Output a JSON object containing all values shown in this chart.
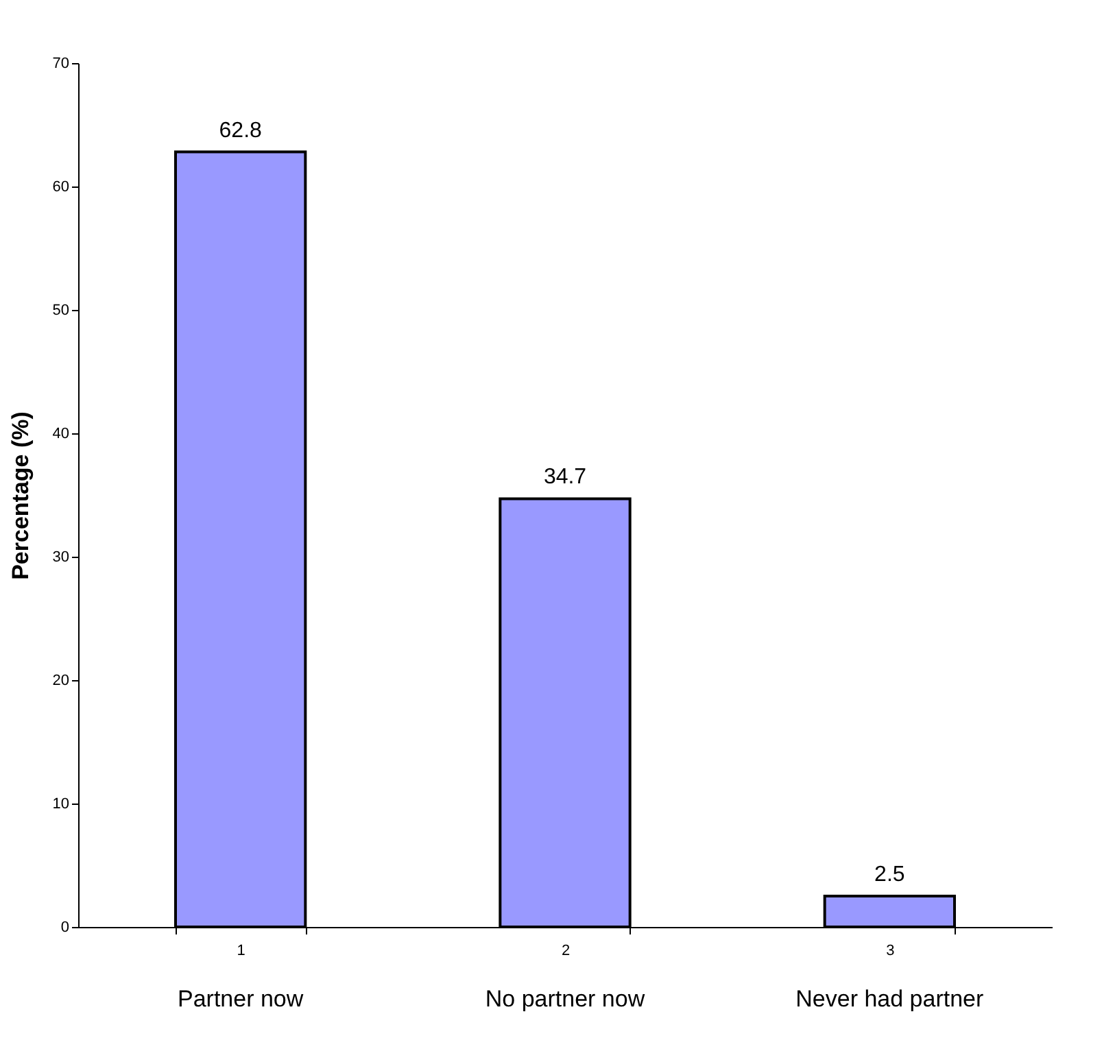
{
  "chart_data": {
    "type": "bar",
    "categories": [
      "1",
      "2",
      "3"
    ],
    "values": [
      62.8,
      34.7,
      2.5
    ],
    "color": "#9999ff",
    "ylabel": "Percentage (%)",
    "ylim": [
      0,
      70
    ],
    "yticks": [
      0,
      10,
      20,
      30,
      40,
      50,
      60,
      70
    ],
    "grid": false,
    "data_labels": true,
    "annotations": [
      "Partner now",
      "No partner now",
      "Never had partner"
    ]
  }
}
